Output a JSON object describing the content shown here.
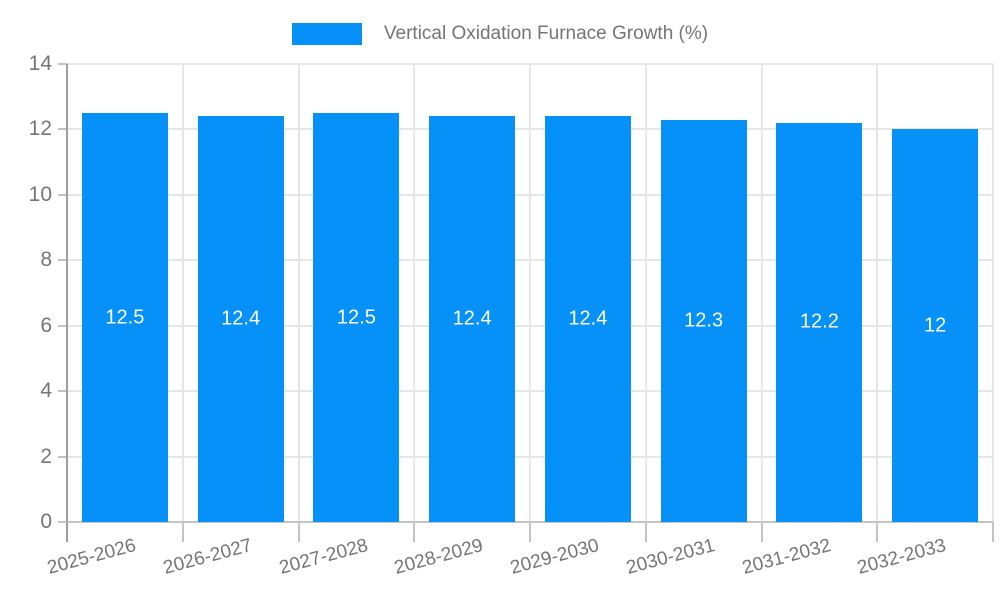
{
  "chart_data": {
    "type": "bar",
    "title": "Vertical Oxidation Furnace Growth (%)",
    "categories": [
      "2025-2026",
      "2026-2027",
      "2027-2028",
      "2028-2029",
      "2029-2030",
      "2030-2031",
      "2031-2032",
      "2032-2033"
    ],
    "values": [
      12.5,
      12.4,
      12.5,
      12.4,
      12.4,
      12.3,
      12.2,
      12
    ],
    "value_labels": [
      "12.5",
      "12.4",
      "12.5",
      "12.4",
      "12.4",
      "12.3",
      "12.2",
      "12"
    ],
    "xlabel": "",
    "ylabel": "",
    "ylim": [
      0,
      14
    ],
    "ytick_step": 2,
    "ytick_labels": [
      "0",
      "2",
      "4",
      "6",
      "8",
      "10",
      "12",
      "14"
    ],
    "grid": true,
    "legend_position": "top-center",
    "colors": {
      "bar": "#0591f8",
      "bar_label_text": "#ffffff",
      "axis_text": "#757575",
      "gridline": "#e6e6e6",
      "axis_line": "#9e9e9e",
      "tick_line": "#c4c4c4",
      "background": "#ffffff"
    }
  }
}
